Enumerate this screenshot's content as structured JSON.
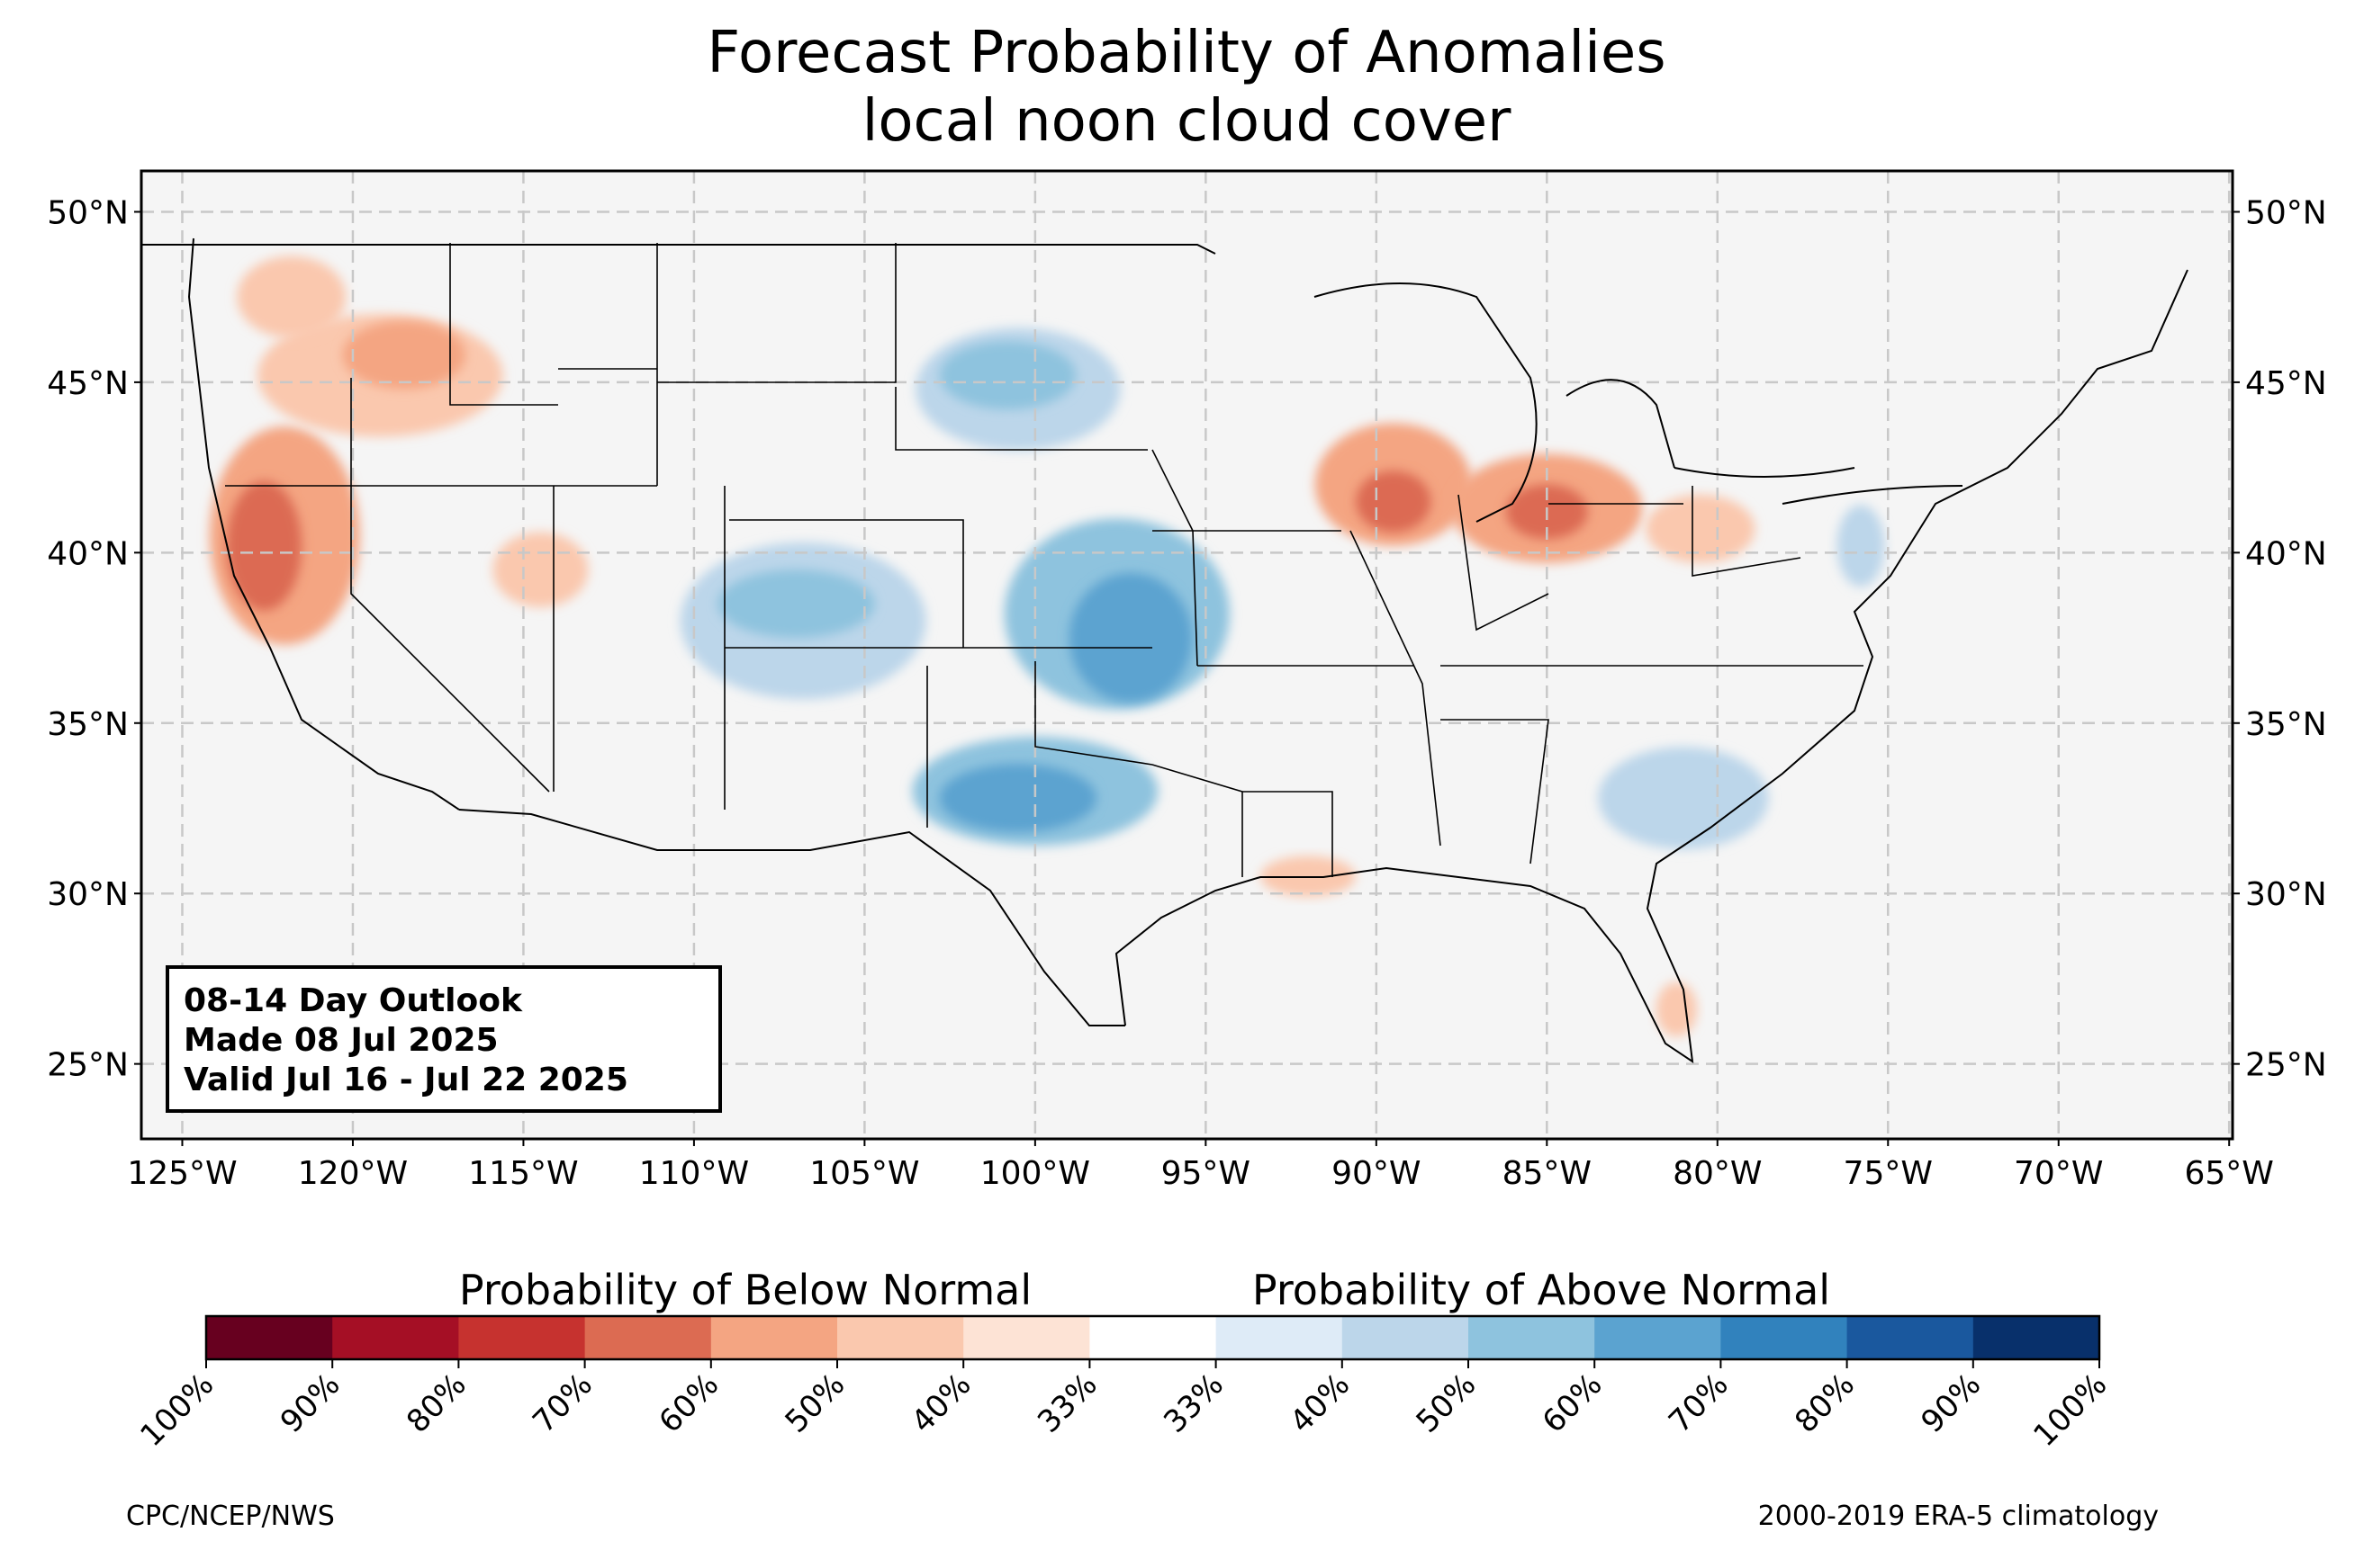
{
  "title": "Forecast Probability of Anomalies",
  "subtitle": "local noon cloud cover",
  "outlook_box": {
    "line1": "08-14 Day Outlook",
    "line2": "Made 08 Jul 2025",
    "line3": "Valid Jul 16 - Jul 22 2025"
  },
  "map": {
    "lat_labels": [
      "50°N",
      "45°N",
      "40°N",
      "35°N",
      "30°N",
      "25°N"
    ],
    "lat_values": [
      50,
      45,
      40,
      35,
      30,
      25
    ],
    "lon_labels": [
      "125°W",
      "120°W",
      "115°W",
      "110°W",
      "105°W",
      "100°W",
      "95°W",
      "90°W",
      "85°W",
      "80°W",
      "75°W",
      "70°W",
      "65°W"
    ],
    "lon_values": [
      -125,
      -120,
      -115,
      -110,
      -105,
      -100,
      -95,
      -90,
      -85,
      -80,
      -75,
      -70,
      -65
    ],
    "extent": {
      "lon_min": -126.2,
      "lon_max": -64.9,
      "lat_min": 22.8,
      "lat_max": 51.2
    },
    "land_color": "#f5f5f5",
    "gridlines": true
  },
  "colorbar": {
    "below_label": "Probability of Below Normal",
    "above_label": "Probability of Above Normal",
    "tick_labels": [
      "100%",
      "90%",
      "80%",
      "70%",
      "60%",
      "50%",
      "40%",
      "33%",
      "33%",
      "40%",
      "50%",
      "60%",
      "70%",
      "80%",
      "90%",
      "100%"
    ],
    "colors": [
      "#67001f",
      "#a50f25",
      "#c6322f",
      "#dc6b52",
      "#f4a582",
      "#fac8ae",
      "#fde3d5",
      "#ffffff",
      "#deebf7",
      "#bcd6ea",
      "#8ec3de",
      "#5ba3d0",
      "#3182bd",
      "#1a589e",
      "#08306b"
    ]
  },
  "anomaly_areas": [
    {
      "category": "below",
      "color": "#f4a582",
      "lon": -122,
      "lat": 40.5,
      "rlon": 2.2,
      "rlat": 3.2
    },
    {
      "category": "below",
      "color": "#dc6b52",
      "lon": -122.6,
      "lat": 40.2,
      "rlon": 1.1,
      "rlat": 1.9
    },
    {
      "category": "below",
      "color": "#fac8ae",
      "lon": -119.2,
      "lat": 45.2,
      "rlon": 3.6,
      "rlat": 1.8
    },
    {
      "category": "below",
      "color": "#f4a582",
      "lon": -118.5,
      "lat": 45.8,
      "rlon": 1.8,
      "rlat": 1.0
    },
    {
      "category": "below",
      "color": "#fac8ae",
      "lon": -121.8,
      "lat": 47.5,
      "rlon": 1.6,
      "rlat": 1.2
    },
    {
      "category": "below",
      "color": "#fac8ae",
      "lon": -114.5,
      "lat": 39.5,
      "rlon": 1.4,
      "rlat": 1.1
    },
    {
      "category": "below",
      "color": "#f4a582",
      "lon": -89.5,
      "lat": 42.0,
      "rlon": 2.3,
      "rlat": 1.8
    },
    {
      "category": "below",
      "color": "#dc6b52",
      "lon": -89.5,
      "lat": 41.5,
      "rlon": 1.1,
      "rlat": 0.9
    },
    {
      "category": "below",
      "color": "#f4a582",
      "lon": -85,
      "lat": 41.3,
      "rlon": 2.8,
      "rlat": 1.6
    },
    {
      "category": "below",
      "color": "#dc6b52",
      "lon": -85,
      "lat": 41.2,
      "rlon": 1.2,
      "rlat": 0.8
    },
    {
      "category": "below",
      "color": "#fac8ae",
      "lon": -80.5,
      "lat": 40.7,
      "rlon": 1.6,
      "rlat": 1.0
    },
    {
      "category": "below",
      "color": "#fac8ae",
      "lon": -92,
      "lat": 30.5,
      "rlon": 1.4,
      "rlat": 0.6
    },
    {
      "category": "below",
      "color": "#fac8ae",
      "lon": -81.2,
      "lat": 26.6,
      "rlon": 0.6,
      "rlat": 0.8
    },
    {
      "category": "above",
      "color": "#bcd6ea",
      "lon": -100.5,
      "lat": 44.8,
      "rlon": 3.0,
      "rlat": 1.8
    },
    {
      "category": "above",
      "color": "#8ec3de",
      "lon": -100.8,
      "lat": 45.2,
      "rlon": 2.0,
      "rlat": 1.0
    },
    {
      "category": "above",
      "color": "#8ec3de",
      "lon": -97.6,
      "lat": 38.2,
      "rlon": 3.3,
      "rlat": 2.8
    },
    {
      "category": "above",
      "color": "#5ba3d0",
      "lon": -97.2,
      "lat": 37.5,
      "rlon": 1.8,
      "rlat": 1.9
    },
    {
      "category": "above",
      "color": "#bcd6ea",
      "lon": -106.8,
      "lat": 38.0,
      "rlon": 3.6,
      "rlat": 2.3
    },
    {
      "category": "above",
      "color": "#8ec3de",
      "lon": -107,
      "lat": 38.5,
      "rlon": 2.3,
      "rlat": 1.0
    },
    {
      "category": "above",
      "color": "#8ec3de",
      "lon": -100,
      "lat": 33.0,
      "rlon": 3.6,
      "rlat": 1.6
    },
    {
      "category": "above",
      "color": "#5ba3d0",
      "lon": -100.5,
      "lat": 32.8,
      "rlon": 2.3,
      "rlat": 1.0
    },
    {
      "category": "above",
      "color": "#bcd6ea",
      "lon": -81,
      "lat": 32.8,
      "rlon": 2.5,
      "rlat": 1.5
    },
    {
      "category": "above",
      "color": "#bcd6ea",
      "lon": -75.8,
      "lat": 40.2,
      "rlon": 0.7,
      "rlat": 1.2
    }
  ],
  "footer": {
    "left": "CPC/NCEP/NWS",
    "right": "2000-2019 ERA-5 climatology"
  }
}
